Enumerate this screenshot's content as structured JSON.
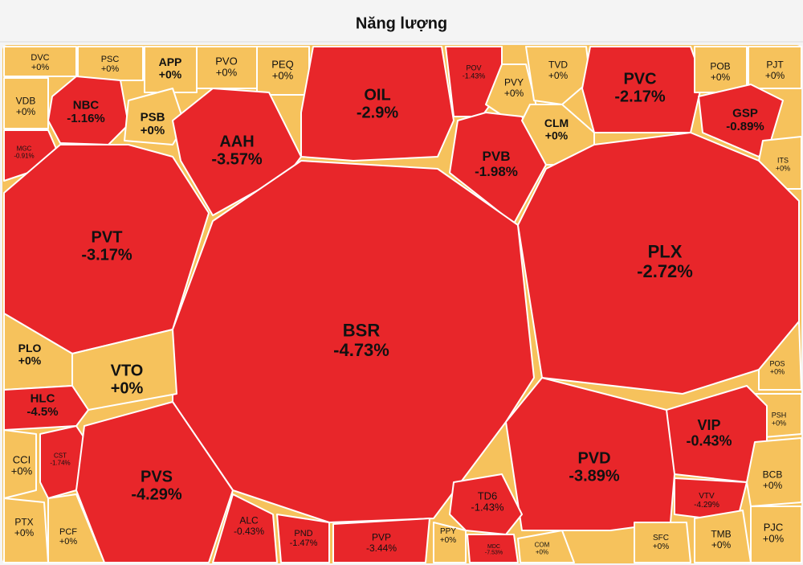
{
  "chart_data": {
    "type": "treemap",
    "title": "Năng lượng",
    "colors": {
      "negative": "#e8262a",
      "zero": "#f6c25c"
    },
    "categories": [
      "DVC",
      "PSC",
      "APP",
      "PVO",
      "PEQ",
      "OIL",
      "POV",
      "PVY",
      "TVD",
      "PVC",
      "POB",
      "PJT",
      "VDB",
      "NBC",
      "PSB",
      "AAH",
      "MGC",
      "PVB",
      "CLM",
      "GSP",
      "ITS",
      "PVT",
      "BSR",
      "PLX",
      "PLO",
      "VTO",
      "POS",
      "HLC",
      "PSH",
      "VIP",
      "CCI",
      "CST",
      "PVS",
      "PVD",
      "BCB",
      "VTV",
      "ALC",
      "PND",
      "PVP",
      "TD6",
      "PPY",
      "MDC",
      "COM",
      "SFC",
      "TMB",
      "PJC",
      "PTX",
      "PCF"
    ],
    "values": [
      0,
      0,
      0,
      0,
      0,
      -2.9,
      -1.43,
      0,
      0,
      -2.17,
      0,
      0,
      0,
      -1.16,
      0,
      -3.57,
      -0.91,
      -1.98,
      0,
      -0.89,
      0,
      -3.17,
      -4.73,
      -2.72,
      0,
      0,
      0,
      -4.5,
      0,
      -0.43,
      0,
      -1.74,
      -4.29,
      -3.89,
      0,
      -4.29,
      -0.43,
      -1.47,
      -3.44,
      -1.43,
      0,
      -7.53,
      0,
      0,
      0,
      0,
      0,
      0
    ],
    "value_labels": [
      "+0%",
      "+0%",
      "+0%",
      "+0%",
      "+0%",
      "-2.9%",
      "-1.43%",
      "+0%",
      "+0%",
      "-2.17%",
      "+0%",
      "+0%",
      "+0%",
      "-1.16%",
      "+0%",
      "-3.57%",
      "-0.91%",
      "-1.98%",
      "+0%",
      "-0.89%",
      "+0%",
      "-3.17%",
      "-4.73%",
      "-2.72%",
      "+0%",
      "+0%",
      "+0%",
      "-4.5%",
      "+0%",
      "-0.43%",
      "+0%",
      "-1.74%",
      "-4.29%",
      "-3.89%",
      "+0%",
      "-4.29%",
      "-0.43%",
      "-1.47%",
      "-3.44%",
      "-1.43%",
      "+0%",
      "-7.53%",
      "+0%",
      "+0%",
      "+0%",
      "+0%",
      "+0%",
      "+0%"
    ]
  }
}
